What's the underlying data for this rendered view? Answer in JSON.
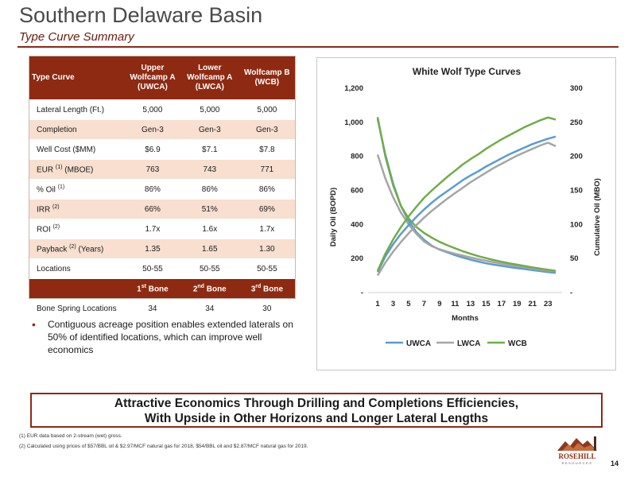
{
  "header": {
    "title": "Southern Delaware Basin",
    "subtitle": "Type Curve Summary"
  },
  "table": {
    "columns": [
      {
        "label": "Type Curve"
      },
      {
        "line1": "Upper",
        "line2": "Wolfcamp A",
        "line3": "(UWCA)"
      },
      {
        "line1": "Lower",
        "line2": "Wolfcamp A",
        "line3": "(LWCA)"
      },
      {
        "line1": "Wolfcamp B",
        "line2": "(WCB)"
      }
    ],
    "rows": [
      {
        "label": "Lateral Length (Ft.)",
        "values": [
          "5,000",
          "5,000",
          "5,000"
        ]
      },
      {
        "label": "Completion",
        "values": [
          "Gen-3",
          "Gen-3",
          "Gen-3"
        ]
      },
      {
        "label": "Well Cost ($MM)",
        "values": [
          "$6.9",
          "$7.1",
          "$7.8"
        ]
      },
      {
        "label": "EUR",
        "sup": "(1)",
        "suffix": "(MBOE)",
        "values": [
          "763",
          "743",
          "771"
        ]
      },
      {
        "label": "% Oil",
        "sup": "(1)",
        "values": [
          "86%",
          "86%",
          "86%"
        ]
      },
      {
        "label": "IRR",
        "sup": "(2)",
        "values": [
          "66%",
          "51%",
          "69%"
        ]
      },
      {
        "label": "ROI",
        "sup": "(2)",
        "values": [
          "1.7x",
          "1.6x",
          "1.7x"
        ]
      },
      {
        "label": "Payback",
        "sup": "(2)",
        "suffix": "(Years)",
        "values": [
          "1.35",
          "1.65",
          "1.30"
        ]
      },
      {
        "label": "Locations",
        "values": [
          "50-55",
          "50-55",
          "50-55"
        ]
      }
    ],
    "bone_header": [
      {
        "num": "1",
        "sup": "st",
        "text": "Bone"
      },
      {
        "num": "2",
        "sup": "nd",
        "text": "Bone"
      },
      {
        "num": "3",
        "sup": "rd",
        "text": "Bone"
      }
    ],
    "bone_row": {
      "label": "Bone Spring Locations",
      "values": [
        "34",
        "34",
        "30"
      ]
    }
  },
  "bullet": "Contiguous acreage position enables extended laterals on 50% of identified locations, which can improve well economics",
  "banner": {
    "line1": "Attractive Economics Through Drilling and Completions Efficiencies,",
    "line2": "With Upside in Other Horizons and Longer Lateral Lengths"
  },
  "footnotes": {
    "fn1": "(1) EUR data based on 2-stream (wet) gross.",
    "fn2": "(2) Calculated using prices of $57/BBL oil & $2.97/MCF natural gas for 2018, $54/BBL oil and $2.87/MCF natural gas for 2019."
  },
  "logo": {
    "text": "ROSEHILL",
    "subtext": "RESOURCES"
  },
  "page_number": "14",
  "chart_data": {
    "type": "line",
    "title": "White Wolf Type Curves",
    "xlabel": "Months",
    "ylabel": "Daily Oil (BOPD)",
    "y2label": "Cumulative Oil (MBO)",
    "x": [
      1,
      2,
      3,
      4,
      5,
      6,
      7,
      8,
      9,
      10,
      11,
      12,
      13,
      14,
      15,
      16,
      17,
      18,
      19,
      20,
      21,
      22,
      23,
      24
    ],
    "xticks": [
      "1",
      "3",
      "5",
      "7",
      "9",
      "11",
      "13",
      "15",
      "17",
      "19",
      "21",
      "23"
    ],
    "ylim": [
      0,
      1200
    ],
    "yticks": [
      "-",
      "200",
      "400",
      "600",
      "800",
      "1,000",
      "1,200"
    ],
    "y2lim": [
      0,
      300
    ],
    "y2ticks": [
      "-",
      "50",
      "100",
      "150",
      "200",
      "250",
      "300"
    ],
    "legend_position": "bottom",
    "grid": false,
    "colors": {
      "UWCA": "#5b9bd5",
      "LWCA": "#a5a5a5",
      "WCB": "#70ad47"
    },
    "series": [
      {
        "name": "UWCA",
        "axis": "left",
        "values": [
          1020,
          810,
          640,
          510,
          420,
          355,
          310,
          275,
          252,
          236,
          220,
          206,
          193,
          182,
          172,
          164,
          157,
          150,
          144,
          138,
          132,
          126,
          120,
          116
        ]
      },
      {
        "name": "LWCA",
        "axis": "left",
        "values": [
          810,
          670,
          560,
          470,
          400,
          345,
          300,
          272,
          254,
          240,
          228,
          217,
          206,
          196,
          187,
          178,
          170,
          162,
          155,
          148,
          141,
          135,
          129,
          124
        ]
      },
      {
        "name": "WCB",
        "axis": "left",
        "values": [
          1030,
          800,
          630,
          510,
          435,
          385,
          350,
          322,
          298,
          278,
          260,
          243,
          228,
          214,
          202,
          191,
          181,
          172,
          164,
          156,
          148,
          141,
          134,
          128
        ]
      },
      {
        "name": "UWCA",
        "axis": "right",
        "values": [
          30,
          53,
          71,
          86,
          99,
          111,
          122,
          132,
          141,
          149,
          157,
          165,
          172,
          178,
          185,
          191,
          197,
          203,
          208,
          213,
          218,
          222,
          226,
          229
        ]
      },
      {
        "name": "LWCA",
        "axis": "right",
        "values": [
          25,
          44,
          60,
          74,
          87,
          99,
          110,
          120,
          129,
          138,
          146,
          154,
          162,
          169,
          176,
          183,
          189,
          195,
          201,
          206,
          211,
          216,
          220,
          215
        ]
      },
      {
        "name": "WCB",
        "axis": "right",
        "values": [
          32,
          57,
          78,
          96,
          112,
          126,
          139,
          150,
          160,
          170,
          179,
          188,
          196,
          203,
          211,
          218,
          225,
          231,
          237,
          243,
          248,
          253,
          257,
          254
        ]
      }
    ]
  }
}
